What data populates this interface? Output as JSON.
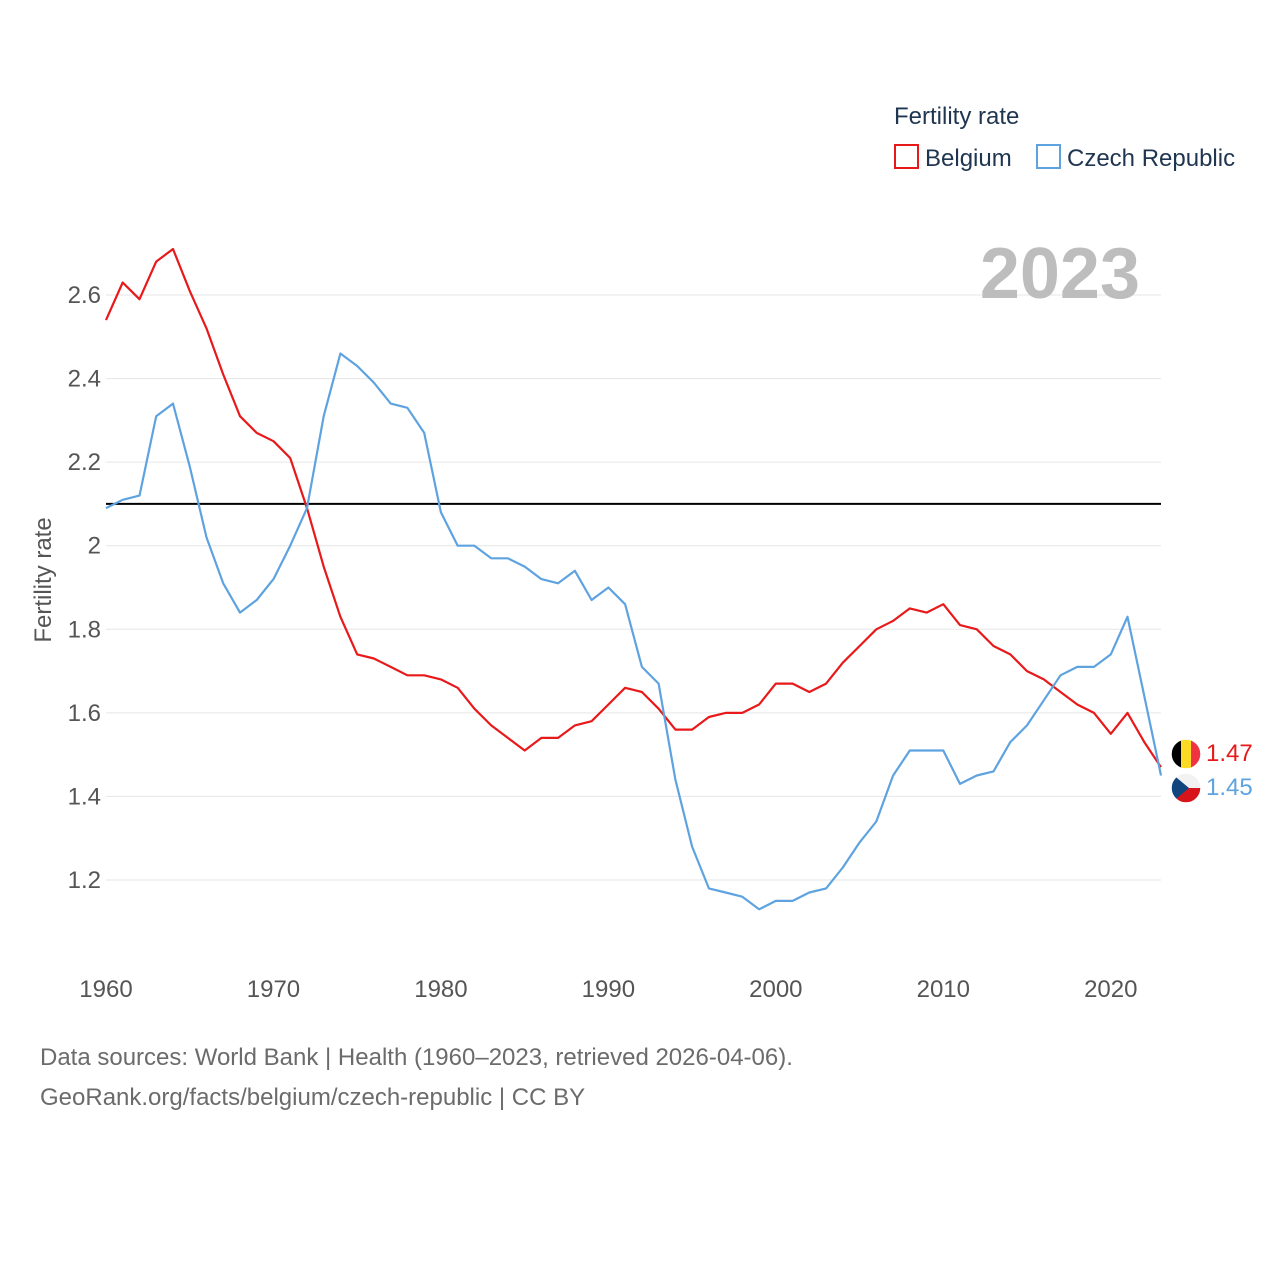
{
  "chart_data": {
    "type": "line",
    "legend_title": "Fertility rate",
    "ylabel": "Fertility rate",
    "year_display": "2023",
    "ylim": [
      1.0,
      2.75
    ],
    "xlim": [
      1960,
      2023
    ],
    "x_ticks": [
      1960,
      1970,
      1980,
      1990,
      2000,
      2010,
      2020
    ],
    "y_ticks": [
      1.2,
      1.4,
      1.6,
      1.8,
      2,
      2.2,
      2.4,
      2.6
    ],
    "reference_line": 2.1,
    "x": [
      1960,
      1961,
      1962,
      1963,
      1964,
      1965,
      1966,
      1967,
      1968,
      1969,
      1970,
      1971,
      1972,
      1973,
      1974,
      1975,
      1976,
      1977,
      1978,
      1979,
      1980,
      1981,
      1982,
      1983,
      1984,
      1985,
      1986,
      1987,
      1988,
      1989,
      1990,
      1991,
      1992,
      1993,
      1994,
      1995,
      1996,
      1997,
      1998,
      1999,
      2000,
      2001,
      2002,
      2003,
      2004,
      2005,
      2006,
      2007,
      2008,
      2009,
      2010,
      2011,
      2012,
      2013,
      2014,
      2015,
      2016,
      2017,
      2018,
      2019,
      2020,
      2021,
      2022,
      2023
    ],
    "series": [
      {
        "name": "Belgium",
        "color": "#e8191a",
        "end_label": "1.47",
        "values": [
          2.54,
          2.63,
          2.59,
          2.68,
          2.71,
          2.61,
          2.52,
          2.41,
          2.31,
          2.27,
          2.25,
          2.21,
          2.09,
          1.95,
          1.83,
          1.74,
          1.73,
          1.71,
          1.69,
          1.69,
          1.68,
          1.66,
          1.61,
          1.57,
          1.54,
          1.51,
          1.54,
          1.54,
          1.57,
          1.58,
          1.62,
          1.66,
          1.65,
          1.61,
          1.56,
          1.56,
          1.59,
          1.6,
          1.6,
          1.62,
          1.67,
          1.67,
          1.65,
          1.67,
          1.72,
          1.76,
          1.8,
          1.82,
          1.85,
          1.84,
          1.86,
          1.81,
          1.8,
          1.76,
          1.74,
          1.7,
          1.68,
          1.65,
          1.62,
          1.6,
          1.55,
          1.6,
          1.53,
          1.47
        ]
      },
      {
        "name": "Czech Republic",
        "color": "#5ea3e0",
        "end_label": "1.45",
        "values": [
          2.09,
          2.11,
          2.12,
          2.31,
          2.34,
          2.19,
          2.02,
          1.91,
          1.84,
          1.87,
          1.92,
          2.0,
          2.09,
          2.31,
          2.46,
          2.43,
          2.39,
          2.34,
          2.33,
          2.27,
          2.08,
          2.0,
          2.0,
          1.97,
          1.97,
          1.95,
          1.92,
          1.91,
          1.94,
          1.87,
          1.9,
          1.86,
          1.71,
          1.67,
          1.44,
          1.28,
          1.18,
          1.17,
          1.16,
          1.13,
          1.15,
          1.15,
          1.17,
          1.18,
          1.23,
          1.29,
          1.34,
          1.45,
          1.51,
          1.51,
          1.51,
          1.43,
          1.45,
          1.46,
          1.53,
          1.57,
          1.63,
          1.69,
          1.71,
          1.71,
          1.74,
          1.83,
          1.64,
          1.45
        ]
      }
    ]
  },
  "footer": {
    "line1": "Data sources: World Bank | Health (1960–2023, retrieved 2026-04-06).",
    "line2": "GeoRank.org/facts/belgium/czech-republic | CC BY"
  }
}
